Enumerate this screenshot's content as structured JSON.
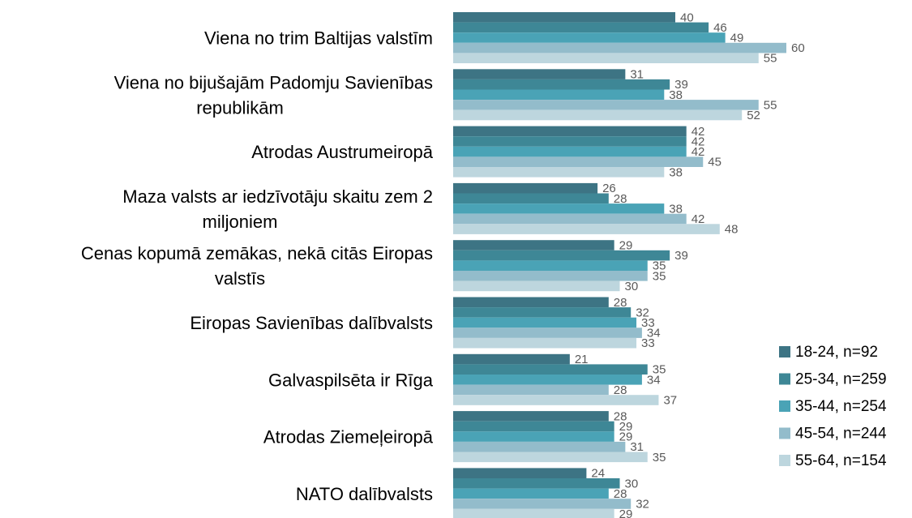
{
  "chart_data": {
    "type": "bar",
    "orientation": "horizontal",
    "categories": [
      [
        "Viena no trim Baltijas valstīm"
      ],
      [
        "Viena no bijušajām Padomju Savienības",
        "republikām"
      ],
      [
        "Atrodas Austrumeiropā"
      ],
      [
        "Maza valsts ar iedzīvotāju skaitu zem 2",
        "miljoniem"
      ],
      [
        "Cenas kopumā zemākas, nekā citās Eiropas",
        "valstīs"
      ],
      [
        "Eiropas Savienības dalībvalsts"
      ],
      [
        "Galvaspilsēta ir Rīga"
      ],
      [
        "Atrodas Ziemeļeiropā"
      ],
      [
        "NATO dalībvalsts"
      ]
    ],
    "series": [
      {
        "name": "18-24, n=92",
        "color": "#3d7484",
        "values": [
          40,
          31,
          42,
          26,
          29,
          28,
          21,
          28,
          24
        ]
      },
      {
        "name": "25-34, n=259",
        "color": "#3e8796",
        "values": [
          46,
          39,
          42,
          28,
          39,
          32,
          35,
          29,
          30
        ]
      },
      {
        "name": "35-44, n=254",
        "color": "#4aa3b6",
        "values": [
          49,
          38,
          42,
          38,
          35,
          33,
          34,
          29,
          28
        ]
      },
      {
        "name": "45-54, n=244",
        "color": "#93bccb",
        "values": [
          60,
          55,
          45,
          42,
          35,
          34,
          28,
          31,
          32
        ]
      },
      {
        "name": "55-64, n=154",
        "color": "#bdd6de",
        "values": [
          55,
          52,
          38,
          48,
          30,
          33,
          37,
          35,
          29
        ]
      }
    ],
    "xlim": [
      0,
      80
    ],
    "grid": false,
    "legend_position": "bottom-right"
  }
}
